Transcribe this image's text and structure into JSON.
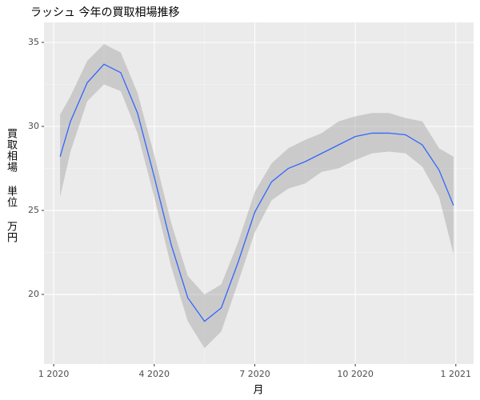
{
  "chart_data": {
    "type": "line",
    "title": "ラッシュ 今年の買取相場推移",
    "x_label": "月",
    "y_label": "買取相場 単位 万円",
    "x": [
      0.19,
      0.5,
      1,
      1.5,
      2,
      2.5,
      3,
      3.5,
      4,
      4.5,
      5,
      5.5,
      6,
      6.5,
      7,
      7.5,
      8,
      8.5,
      9,
      9.5,
      10,
      10.5,
      11,
      11.5,
      11.93
    ],
    "values": [
      28.2,
      30.3,
      32.6,
      33.7,
      33.2,
      30.8,
      27.0,
      23.0,
      19.8,
      18.4,
      19.2,
      21.9,
      24.9,
      26.7,
      27.5,
      27.9,
      28.4,
      28.9,
      29.4,
      29.6,
      29.6,
      29.5,
      28.9,
      27.4,
      25.3
    ],
    "lower": [
      25.8,
      28.5,
      31.5,
      32.5,
      32.1,
      29.6,
      25.8,
      21.7,
      18.4,
      16.8,
      17.8,
      20.7,
      23.7,
      25.6,
      26.3,
      26.6,
      27.3,
      27.5,
      28.0,
      28.4,
      28.5,
      28.4,
      27.6,
      25.8,
      22.4
    ],
    "upper": [
      30.7,
      31.8,
      33.9,
      34.9,
      34.4,
      32.0,
      28.3,
      24.3,
      21.1,
      20.0,
      20.6,
      23.1,
      26.1,
      27.8,
      28.7,
      29.2,
      29.6,
      30.3,
      30.6,
      30.8,
      30.8,
      30.5,
      30.3,
      28.7,
      28.2
    ],
    "color": "#3366ff",
    "band_color": "#999999",
    "xlim": [
      -0.29,
      12.53
    ],
    "xticks": [
      {
        "value": 0,
        "label": "1 2020"
      },
      {
        "value": 3,
        "label": "4 2020"
      },
      {
        "value": 6,
        "label": "7 2020"
      },
      {
        "value": 9,
        "label": "10 2020"
      },
      {
        "value": 12,
        "label": "1 2021"
      }
    ],
    "ylim": [
      15.86,
      36.19
    ],
    "yticks": [
      20,
      25,
      30,
      35
    ],
    "grid": true
  }
}
